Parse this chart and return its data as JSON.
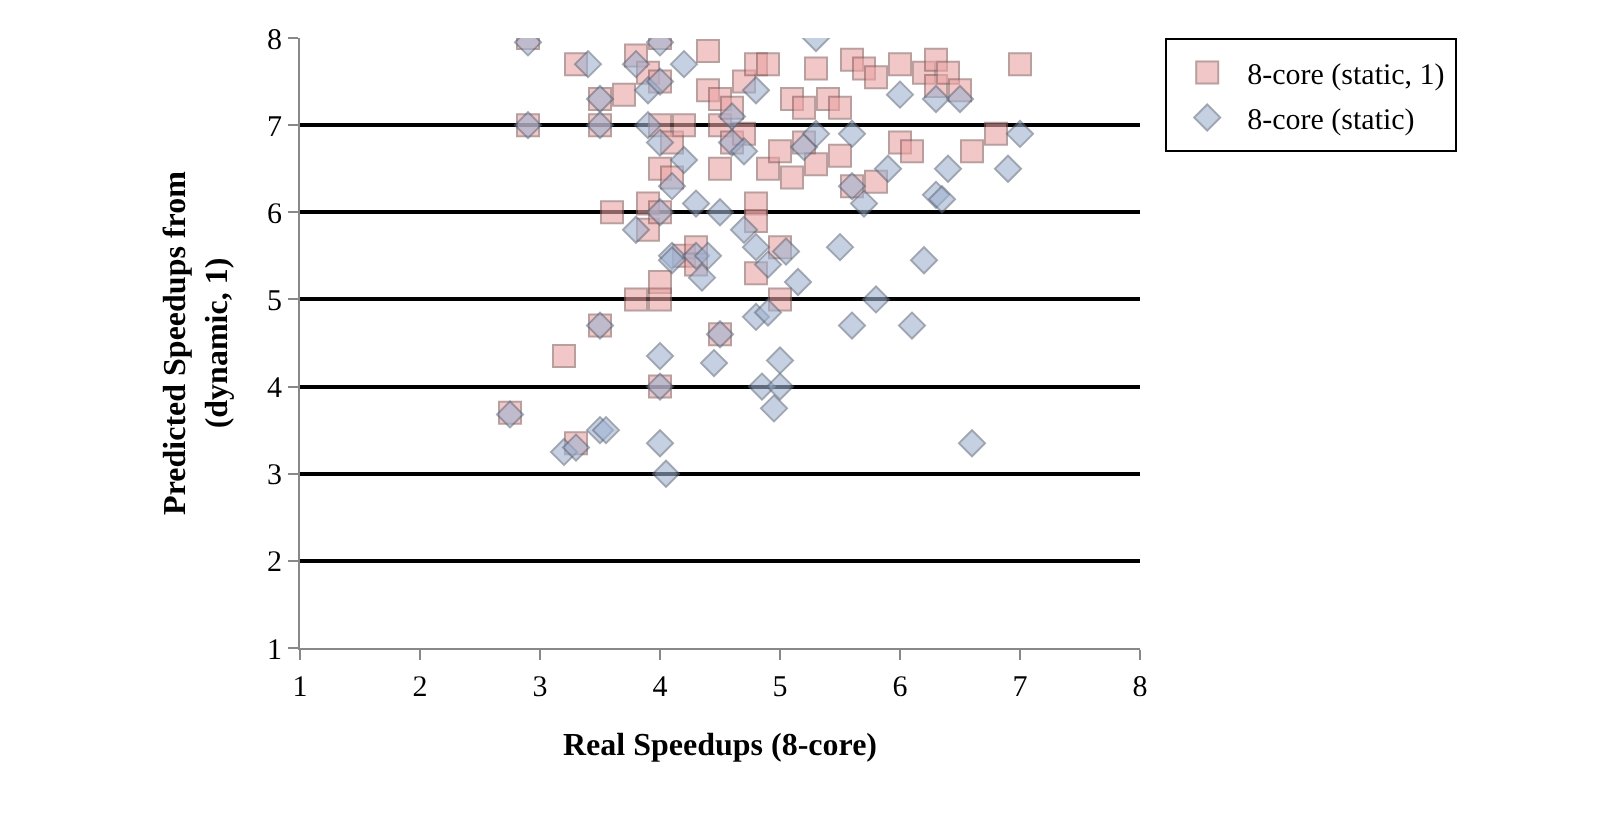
{
  "chart_data": {
    "type": "scatter",
    "xlabel": "Real Speedups (8-core)",
    "ylabel": "Predicted Speedups from\n(dynamic, 1)",
    "xlim": [
      1,
      8
    ],
    "xticks": [
      1,
      2,
      3,
      4,
      5,
      6,
      7,
      8
    ],
    "ylim": [
      1,
      8
    ],
    "yticks": [
      1,
      2,
      3,
      4,
      5,
      6,
      7,
      8
    ],
    "grid": "y",
    "legend": "top right",
    "series": [
      {
        "name": "8-core (static, 1)",
        "color": "#eba3a3",
        "marker": "square",
        "x": [
          2.9,
          2.9,
          3.3,
          3.5,
          3.5,
          3.5,
          3.2,
          3.3,
          2.75,
          3.6,
          3.7,
          3.8,
          3.8,
          3.9,
          3.9,
          3.9,
          4.0,
          4.0,
          4.0,
          4.0,
          4.0,
          4.0,
          4.0,
          4.0,
          4.1,
          4.1,
          4.2,
          4.2,
          4.3,
          4.4,
          4.4,
          4.5,
          4.5,
          4.5,
          4.5,
          4.6,
          4.6,
          4.7,
          4.7,
          4.8,
          4.8,
          4.8,
          4.8,
          4.9,
          4.9,
          5.0,
          5.0,
          5.1,
          5.1,
          5.2,
          5.2,
          5.3,
          5.4,
          5.5,
          5.5,
          5.6,
          5.6,
          5.7,
          5.8,
          5.8,
          6.0,
          6.0,
          6.1,
          6.2,
          6.3,
          6.3,
          6.4,
          6.5,
          6.6,
          6.8,
          7.0,
          5.0,
          4.3,
          5.3
        ],
        "values": [
          8.0,
          7.0,
          7.7,
          7.0,
          7.3,
          4.7,
          4.35,
          3.35,
          3.7,
          6.0,
          7.35,
          7.8,
          5.0,
          7.6,
          6.1,
          5.8,
          8.0,
          7.5,
          7.0,
          6.5,
          6.0,
          5.2,
          5.0,
          4.0,
          6.8,
          6.4,
          5.5,
          7.0,
          5.6,
          7.85,
          7.4,
          7.3,
          7.0,
          6.5,
          4.6,
          7.2,
          6.8,
          7.5,
          6.9,
          7.7,
          6.1,
          5.9,
          5.3,
          7.7,
          6.5,
          5.0,
          6.7,
          7.3,
          6.4,
          7.2,
          6.8,
          7.65,
          7.3,
          7.2,
          6.65,
          7.75,
          6.3,
          7.65,
          7.55,
          6.35,
          7.7,
          6.8,
          6.7,
          7.6,
          7.75,
          7.45,
          7.6,
          7.4,
          6.7,
          6.9,
          7.7,
          5.6,
          5.4,
          6.55
        ]
      },
      {
        "name": "8-core (static)",
        "color": "#9fb3d1",
        "marker": "diamond",
        "x": [
          2.9,
          2.9,
          2.75,
          3.2,
          3.3,
          3.4,
          3.5,
          3.5,
          3.5,
          3.5,
          3.55,
          3.8,
          3.8,
          3.9,
          3.9,
          4.0,
          4.0,
          4.0,
          4.0,
          4.0,
          4.0,
          4.0,
          4.05,
          4.1,
          4.1,
          4.1,
          4.2,
          4.2,
          4.3,
          4.3,
          4.35,
          4.4,
          4.45,
          4.5,
          4.5,
          4.6,
          4.6,
          4.7,
          4.7,
          4.8,
          4.8,
          4.8,
          4.9,
          4.9,
          4.85,
          4.95,
          5.0,
          5.0,
          5.05,
          5.15,
          5.2,
          5.3,
          5.3,
          5.5,
          5.6,
          5.6,
          5.6,
          5.7,
          5.8,
          5.9,
          6.1,
          6.0,
          6.3,
          6.3,
          6.4,
          6.2,
          6.5,
          6.6,
          6.9,
          7.0,
          6.35
        ],
        "values": [
          7.95,
          7.0,
          3.68,
          3.25,
          3.3,
          7.7,
          7.0,
          4.7,
          3.5,
          7.3,
          3.5,
          7.7,
          5.8,
          7.4,
          7.0,
          7.95,
          7.5,
          6.0,
          6.8,
          4.0,
          4.35,
          3.35,
          3.0,
          5.5,
          5.45,
          6.3,
          7.7,
          6.6,
          6.1,
          5.5,
          5.25,
          5.5,
          4.27,
          4.6,
          6.0,
          7.1,
          6.8,
          6.7,
          5.8,
          7.4,
          5.6,
          4.8,
          4.85,
          5.4,
          4.0,
          3.75,
          4.0,
          4.3,
          5.55,
          5.2,
          6.75,
          8.0,
          6.9,
          5.6,
          4.7,
          6.3,
          6.9,
          6.1,
          5.0,
          6.5,
          4.7,
          7.35,
          7.3,
          6.2,
          6.5,
          5.45,
          7.3,
          3.35,
          6.5,
          6.9,
          6.15
        ]
      }
    ]
  }
}
